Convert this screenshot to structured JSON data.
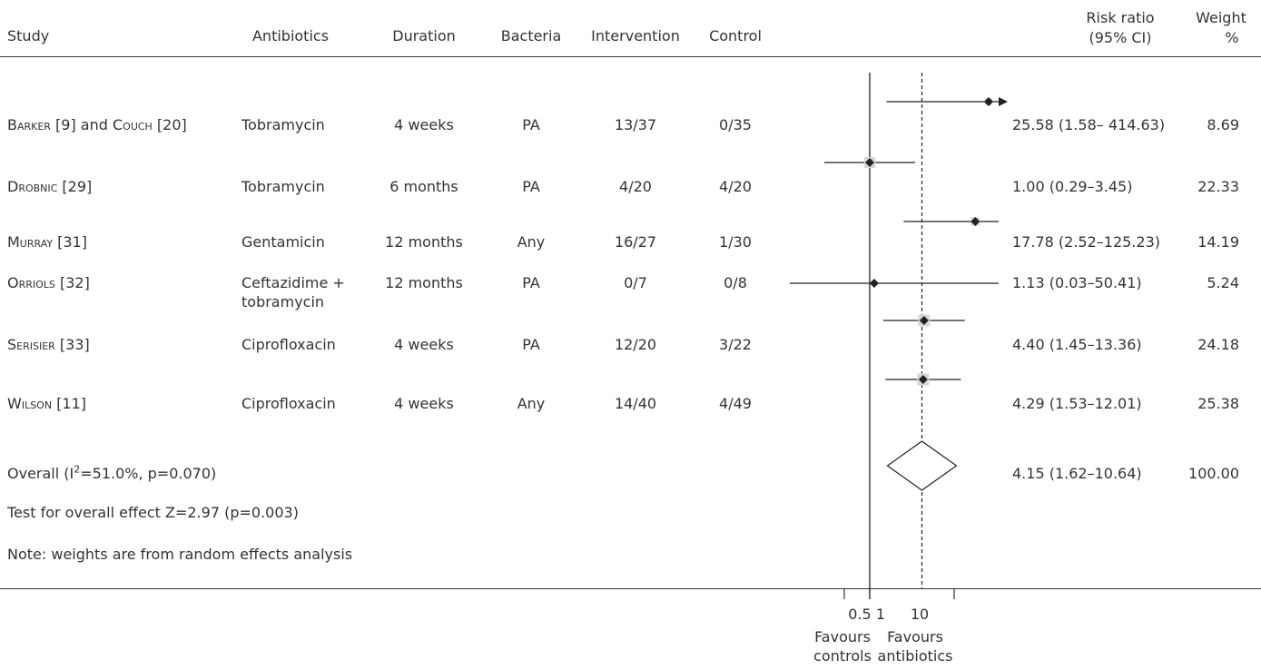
{
  "header": {
    "study": "Study",
    "antibiotics": "Antibiotics",
    "duration": "Duration",
    "bacteria": "Bacteria",
    "intervention": "Intervention",
    "control": "Control",
    "rr_line1": "Risk ratio",
    "rr_line2": "(95% CI)",
    "weight_line1": "Weight",
    "weight_line2": "%"
  },
  "studies": [
    {
      "name_a": "Barker",
      "ref_a": " [9] and ",
      "name_b": "Couch",
      "ref_b": " [20]",
      "antibiotic": "Tobramycin",
      "antibiotic2": "",
      "duration": "4 weeks",
      "bacteria": "PA",
      "intervention": "13/37",
      "control": "0/35",
      "rr_text": "25.58 (1.58– 414.63)",
      "weight": "8.69"
    },
    {
      "name_a": "Drobnic",
      "ref_a": " [29]",
      "name_b": "",
      "ref_b": "",
      "antibiotic": "Tobramycin",
      "antibiotic2": "",
      "duration": "6 months",
      "bacteria": "PA",
      "intervention": "4/20",
      "control": "4/20",
      "rr_text": "1.00 (0.29–3.45)",
      "weight": "22.33"
    },
    {
      "name_a": "Murray",
      "ref_a": " [31]",
      "name_b": "",
      "ref_b": "",
      "antibiotic": "Gentamicin",
      "antibiotic2": "",
      "duration": "12 months",
      "bacteria": "Any",
      "intervention": "16/27",
      "control": "1/30",
      "rr_text": "17.78 (2.52–125.23)",
      "weight": "14.19"
    },
    {
      "name_a": "Orriols",
      "ref_a": " [32]",
      "name_b": "",
      "ref_b": "",
      "antibiotic": "Ceftazidime +",
      "antibiotic2": "tobramycin",
      "duration": "12 months",
      "bacteria": "PA",
      "intervention": "0/7",
      "control": "0/8",
      "rr_text": "1.13 (0.03–50.41)",
      "weight": "5.24"
    },
    {
      "name_a": "Serisier",
      "ref_a": " [33]",
      "name_b": "",
      "ref_b": "",
      "antibiotic": "Ciprofloxacin",
      "antibiotic2": "",
      "duration": "4 weeks",
      "bacteria": "PA",
      "intervention": "12/20",
      "control": "3/22",
      "rr_text": "4.40 (1.45–13.36)",
      "weight": "24.18"
    },
    {
      "name_a": "Wilson",
      "ref_a": " [11]",
      "name_b": "",
      "ref_b": "",
      "antibiotic": "Ciprofloxacin",
      "antibiotic2": "",
      "duration": "4 weeks",
      "bacteria": "Any",
      "intervention": "14/40",
      "control": "4/49",
      "rr_text": "4.29 (1.53–12.01)",
      "weight": "25.38"
    }
  ],
  "overall": {
    "label_pre": "Overall (I",
    "label_sup": "2",
    "label_post": "=51.0%, p=0.070)",
    "rr_text": "4.15 (1.62–10.64)",
    "weight": "100.00"
  },
  "footnotes": {
    "test": "Test for overall effect Z=2.97 (p=0.003)",
    "note": "Note: weights are from random effects analysis"
  },
  "axis": {
    "tick_labels": [
      "0.5",
      "1",
      "10"
    ],
    "favours_left_1": "Favours",
    "favours_left_2": "controls",
    "favours_right_1": "Favours",
    "favours_right_2": "antibiotics"
  },
  "chart_data": {
    "type": "forest",
    "xscale": "log",
    "xlim": [
      0.01,
      20
    ],
    "xticks": [
      0.5,
      1,
      10
    ],
    "null_line": 1,
    "pooled_line": 4.15,
    "studies": [
      {
        "name": "Barker [9] and Couch [20]",
        "rr": 25.58,
        "lo": 1.58,
        "hi": 414.63,
        "weight": 8.69,
        "arrow_right": true
      },
      {
        "name": "Drobnic [29]",
        "rr": 1.0,
        "lo": 0.29,
        "hi": 3.45,
        "weight": 22.33
      },
      {
        "name": "Murray [31]",
        "rr": 17.78,
        "lo": 2.52,
        "hi": 125.23,
        "weight": 14.19
      },
      {
        "name": "Orriols [32]",
        "rr": 1.13,
        "lo": 0.03,
        "hi": 50.41,
        "weight": 5.24
      },
      {
        "name": "Serisier [33]",
        "rr": 4.4,
        "lo": 1.45,
        "hi": 13.36,
        "weight": 24.18
      },
      {
        "name": "Wilson [11]",
        "rr": 4.29,
        "lo": 1.53,
        "hi": 12.01,
        "weight": 25.38
      }
    ],
    "overall": {
      "rr": 4.15,
      "lo": 1.62,
      "hi": 10.64,
      "weight": 100.0
    }
  }
}
